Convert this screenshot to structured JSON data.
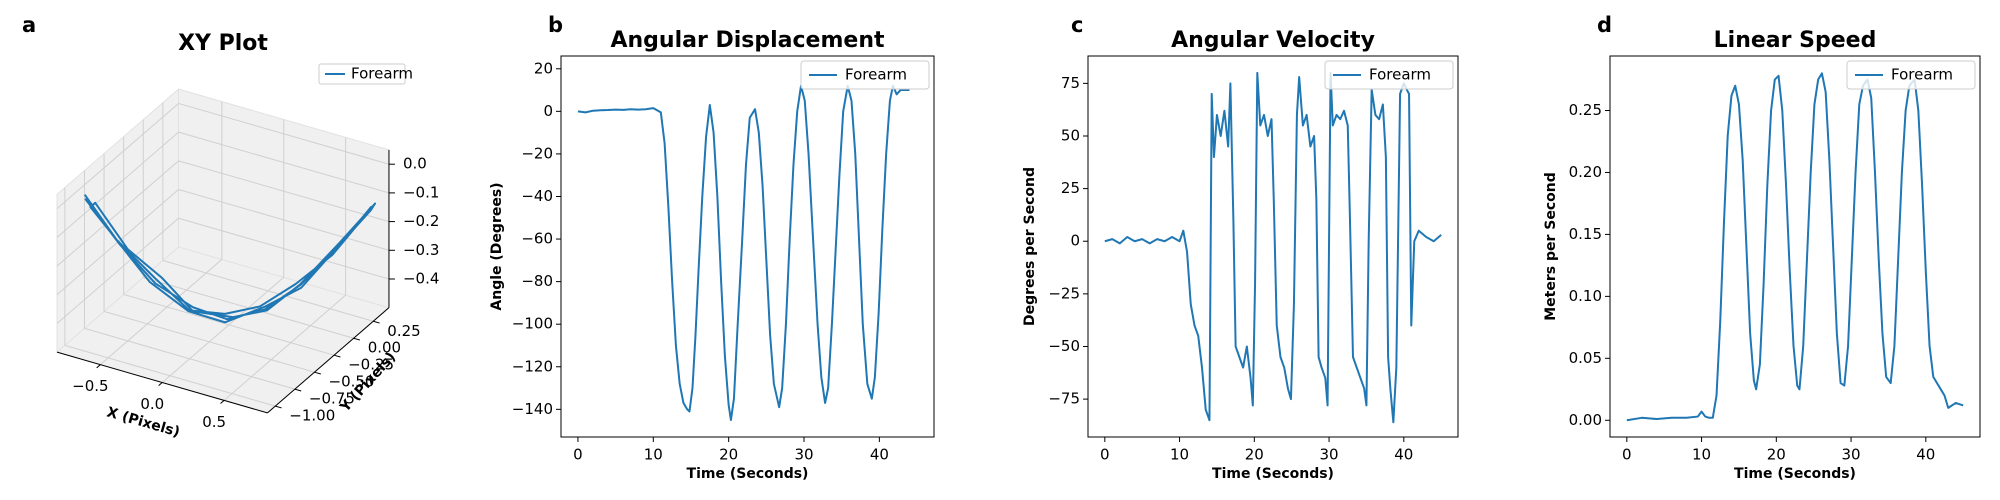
{
  "chart_data": [
    {
      "type": "line3d",
      "panel_label": "a",
      "title": "XY Plot",
      "xlabel": "X (Pixels)",
      "ylabel": "Y (Pixels)",
      "xlim": [
        -0.85,
        0.85
      ],
      "ylim": [
        -1.1,
        0.45
      ],
      "zlim": [
        -0.5,
        0.05
      ],
      "xticks": [
        {
          "value": -0.5,
          "label": "−0.5"
        },
        {
          "value": 0,
          "label": "0.0"
        },
        0.5
      ],
      "yticks": [
        {
          "value": -1,
          "label": "−1.00"
        },
        {
          "value": -0.75,
          "label": "−0.75"
        },
        {
          "value": -0.5,
          "label": "−0.50"
        },
        {
          "value": -0.25,
          "label": "−0.25"
        },
        {
          "value": 0,
          "label": "0.00"
        },
        0.25
      ],
      "zticks": [
        {
          "value": 0,
          "label": "0.0"
        },
        {
          "value": -0.1,
          "label": "−0.1"
        },
        {
          "value": -0.2,
          "label": "−0.2"
        },
        {
          "value": -0.3,
          "label": "−0.3"
        },
        {
          "value": -0.4,
          "label": "−0.4"
        }
      ],
      "legend": "upper right",
      "grid": true,
      "series": [
        {
          "name": "Forearm",
          "color": "#1f77b4",
          "x": [
            -0.75,
            -0.56,
            -0.36,
            -0.17,
            0.03,
            0.22,
            0.41,
            0.61,
            0.8,
            0.78,
            0.6,
            0.4,
            0.2,
            0.0,
            -0.18,
            -0.38,
            -0.57,
            -0.72,
            -0.7,
            -0.52,
            -0.33,
            -0.15,
            0.05,
            0.25,
            0.43,
            0.62,
            0.82,
            0.8,
            0.6,
            0.42,
            0.21,
            0.02,
            -0.2,
            -0.4,
            -0.58,
            -0.74
          ],
          "y": [
            -0.9,
            -0.76,
            -0.62,
            -0.44,
            -0.32,
            -0.14,
            0.02,
            0.14,
            0.3,
            0.28,
            0.12,
            -0.03,
            -0.17,
            -0.3,
            -0.47,
            -0.6,
            -0.78,
            -0.88,
            -0.85,
            -0.72,
            -0.58,
            -0.47,
            -0.28,
            -0.16,
            -0.02,
            0.17,
            0.32,
            0.3,
            0.16,
            0.01,
            -0.13,
            -0.33,
            -0.45,
            -0.63,
            -0.74,
            -0.92
          ],
          "z": [
            0,
            -0.168,
            -0.313,
            -0.415,
            -0.46,
            -0.445,
            -0.373,
            -0.258,
            -0.12,
            -0.14,
            -0.27,
            -0.36,
            -0.43,
            -0.45,
            -0.42,
            -0.3,
            -0.15,
            -0.03,
            -0.02,
            -0.19,
            -0.3,
            -0.42,
            -0.46,
            -0.44,
            -0.36,
            -0.24,
            -0.11,
            -0.13,
            -0.26,
            -0.38,
            -0.44,
            -0.47,
            -0.43,
            -0.31,
            -0.17,
            0.02
          ]
        }
      ]
    },
    {
      "type": "line",
      "panel_label": "b",
      "title": "Angular Displacement",
      "xlabel": "Time (Seconds)",
      "ylabel": "Angle (Degrees)",
      "xlim": [
        -2.25,
        47.25
      ],
      "ylim": [
        -153,
        26
      ],
      "xticks": [
        0,
        10,
        20,
        30,
        40
      ],
      "yticks": [
        20,
        0,
        {
          "value": -20,
          "label": "−20"
        },
        {
          "value": -40,
          "label": "−40"
        },
        {
          "value": -60,
          "label": "−60"
        },
        {
          "value": -80,
          "label": "−80"
        },
        {
          "value": -100,
          "label": "−100"
        },
        {
          "value": -120,
          "label": "−120"
        },
        {
          "value": -140,
          "label": "−140"
        }
      ],
      "legend": "upper right",
      "x": [
        0,
        1,
        2,
        3,
        4,
        5,
        6,
        7,
        8,
        9,
        10,
        10.5,
        11,
        11.5,
        12,
        12.5,
        13,
        13.5,
        14,
        14.5,
        14.8,
        15.2,
        15.6,
        16,
        16.5,
        17,
        17.5,
        18,
        18.5,
        19,
        19.5,
        20,
        20.3,
        20.7,
        21.2,
        21.8,
        22.3,
        22.8,
        23.5,
        24,
        24.5,
        25,
        25.5,
        26,
        26.7,
        27.1,
        27.6,
        28.1,
        28.6,
        29.1,
        29.6,
        30.1,
        30.6,
        31.2,
        31.8,
        32.3,
        32.8,
        33.2,
        33.7,
        34.2,
        34.7,
        35.2,
        35.8,
        36.3,
        36.8,
        37.3,
        37.8,
        38.4,
        39,
        39.4,
        39.9,
        40.4,
        40.9,
        41.4,
        41.8,
        42.3,
        42.8,
        43.3,
        44
      ],
      "series": [
        {
          "name": "Forearm",
          "color": "#1f77b4",
          "values": [
            0,
            -0.5,
            0.3,
            0.5,
            0.6,
            0.8,
            0.7,
            1,
            0.8,
            1,
            1.5,
            0.5,
            -0.5,
            -15,
            -45,
            -80,
            -110,
            -128,
            -137,
            -140,
            -141,
            -130,
            -105,
            -75,
            -40,
            -12,
            3,
            -10,
            -40,
            -80,
            -115,
            -138,
            -145,
            -135,
            -100,
            -60,
            -25,
            -3,
            1,
            -10,
            -35,
            -70,
            -105,
            -128,
            -139,
            -130,
            -100,
            -60,
            -25,
            0,
            12,
            5,
            -20,
            -60,
            -100,
            -125,
            -137,
            -130,
            -100,
            -65,
            -30,
            0,
            12,
            5,
            -20,
            -60,
            -100,
            -128,
            -135,
            -125,
            -95,
            -55,
            -20,
            5,
            12,
            8,
            10,
            10,
            10
          ]
        }
      ]
    },
    {
      "type": "line",
      "panel_label": "c",
      "title": "Angular Velocity",
      "xlabel": "Time (Seconds)",
      "ylabel": "Degrees per Second",
      "xlim": [
        -2.25,
        47.25
      ],
      "ylim": [
        -93,
        88
      ],
      "xticks": [
        0,
        10,
        20,
        30,
        40
      ],
      "yticks": [
        75,
        50,
        25,
        0,
        {
          "value": -25,
          "label": "−25"
        },
        {
          "value": -50,
          "label": "−50"
        },
        {
          "value": -75,
          "label": "−75"
        }
      ],
      "legend": "upper right",
      "x": [
        0,
        1,
        2,
        3,
        4,
        5,
        6,
        7,
        8,
        9,
        10,
        10.5,
        11,
        11.5,
        12,
        12.5,
        13,
        13.5,
        14,
        14.3,
        14.6,
        15,
        15.5,
        16,
        16.5,
        16.8,
        17.2,
        17.5,
        18,
        18.5,
        19,
        19.5,
        19.8,
        20.1,
        20.4,
        20.8,
        21.3,
        21.8,
        22.3,
        22.6,
        23,
        23.5,
        24,
        24.5,
        24.9,
        25.3,
        25.7,
        26,
        26.5,
        27,
        27.5,
        28,
        28.3,
        28.6,
        29,
        29.5,
        29.8,
        30.2,
        30.5,
        31,
        31.5,
        32,
        32.5,
        32.8,
        33.2,
        33.7,
        34.2,
        34.7,
        35,
        35.3,
        35.7,
        36.2,
        36.7,
        37.2,
        37.6,
        37.9,
        38.2,
        38.6,
        39,
        39.5,
        40,
        40.4,
        40.7,
        41,
        41.4,
        42,
        43,
        44,
        45
      ],
      "series": [
        {
          "name": "Forearm",
          "color": "#1f77b4",
          "values": [
            0,
            1,
            -1,
            2,
            0,
            1,
            -1,
            1,
            0,
            2,
            0,
            5,
            -5,
            -30,
            -40,
            -45,
            -60,
            -80,
            -85,
            70,
            40,
            60,
            50,
            62,
            45,
            75,
            10,
            -50,
            -55,
            -60,
            -50,
            -65,
            -78,
            -20,
            80,
            55,
            60,
            50,
            58,
            20,
            -40,
            -55,
            -60,
            -70,
            -75,
            -30,
            60,
            78,
            55,
            60,
            45,
            50,
            20,
            -55,
            -60,
            -65,
            -78,
            80,
            55,
            60,
            58,
            62,
            55,
            10,
            -55,
            -60,
            -65,
            -70,
            -78,
            0,
            72,
            60,
            58,
            65,
            40,
            -55,
            -70,
            -86,
            -60,
            70,
            75,
            72,
            70,
            -40,
            0,
            5,
            2,
            0,
            3
          ]
        }
      ]
    },
    {
      "type": "line",
      "panel_label": "d",
      "title": "Linear Speed",
      "xlabel": "Time (Seconds)",
      "ylabel": "Meters per Second",
      "xlim": [
        -2.25,
        47.25
      ],
      "ylim": [
        -0.0135,
        0.294
      ],
      "xticks": [
        0,
        10,
        20,
        30,
        40
      ],
      "yticks": [
        {
          "value": 0,
          "label": "0.00"
        },
        0.05,
        {
          "value": 0.1,
          "label": "0.10"
        },
        0.15,
        {
          "value": 0.2,
          "label": "0.20"
        },
        0.25
      ],
      "legend": "upper right",
      "x": [
        0,
        2,
        4,
        6,
        8,
        9.5,
        10,
        10.5,
        11,
        11.5,
        12,
        12.5,
        13,
        13.5,
        14,
        14.5,
        15,
        15.5,
        16,
        16.5,
        17,
        17.3,
        17.8,
        18.3,
        18.8,
        19.3,
        19.8,
        20.3,
        20.8,
        21.3,
        21.8,
        22.3,
        22.8,
        23.1,
        23.6,
        24.1,
        24.6,
        25.1,
        25.6,
        26.1,
        26.6,
        27.1,
        27.6,
        28.1,
        28.6,
        29.1,
        29.6,
        30.1,
        30.6,
        31.1,
        31.6,
        32.2,
        32.7,
        33.2,
        33.7,
        34.2,
        34.7,
        35.3,
        35.8,
        36.3,
        36.8,
        37.3,
        37.8,
        38.5,
        39,
        39.5,
        40,
        40.5,
        41,
        41.5,
        42,
        42.5,
        43,
        44,
        45
      ],
      "series": [
        {
          "name": "Forearm",
          "color": "#1f77b4",
          "values": [
            0,
            0.002,
            0.001,
            0.002,
            0.002,
            0.003,
            0.007,
            0.003,
            0.002,
            0.002,
            0.02,
            0.08,
            0.16,
            0.23,
            0.262,
            0.27,
            0.255,
            0.21,
            0.14,
            0.07,
            0.032,
            0.025,
            0.045,
            0.11,
            0.19,
            0.25,
            0.275,
            0.278,
            0.25,
            0.19,
            0.12,
            0.06,
            0.028,
            0.025,
            0.06,
            0.13,
            0.2,
            0.255,
            0.275,
            0.28,
            0.265,
            0.21,
            0.14,
            0.07,
            0.03,
            0.028,
            0.06,
            0.13,
            0.2,
            0.255,
            0.27,
            0.275,
            0.26,
            0.2,
            0.13,
            0.07,
            0.035,
            0.03,
            0.06,
            0.13,
            0.2,
            0.25,
            0.27,
            0.275,
            0.25,
            0.19,
            0.12,
            0.06,
            0.035,
            0.03,
            0.025,
            0.02,
            0.01,
            0.014,
            0.012
          ]
        }
      ]
    }
  ]
}
